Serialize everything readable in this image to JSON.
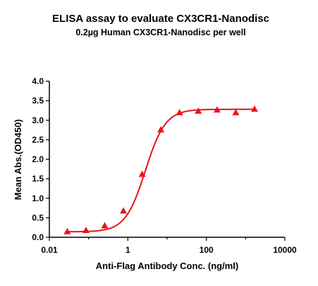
{
  "chart_data": {
    "type": "scatter",
    "title": "ELISA assay to evaluate CX3CR1-Nanodisc",
    "subtitle": "0.2µg Human CX3CR1-Nanodisc per well",
    "xlabel": "Anti-Flag Antibody Conc. (ng/ml)",
    "ylabel": "Mean Abs.(OD450)",
    "x_scale": "log",
    "xlim": [
      0.01,
      10000
    ],
    "ylim": [
      0.0,
      4.0
    ],
    "x_ticks": [
      0.01,
      1,
      100,
      10000
    ],
    "x_tick_labels": [
      "0.01",
      "1",
      "100",
      "10000"
    ],
    "y_ticks": [
      0.0,
      0.5,
      1.0,
      1.5,
      2.0,
      2.5,
      3.0,
      3.5,
      4.0
    ],
    "y_tick_labels": [
      "0.0",
      "0.5",
      "1.0",
      "1.5",
      "2.0",
      "2.5",
      "3.0",
      "3.5",
      "4.0"
    ],
    "grid": false,
    "legend": false,
    "marker": "triangle",
    "color": "#e8141c",
    "series": [
      {
        "x": [
          0.0286,
          0.0857,
          0.257,
          0.771,
          2.31,
          6.94,
          20.8,
          62.5,
          187.5,
          562.5,
          1687.5
        ],
        "y": [
          0.15,
          0.18,
          0.3,
          0.68,
          1.62,
          2.76,
          3.2,
          3.24,
          3.27,
          3.2,
          3.29
        ]
      }
    ],
    "fit_curve": {
      "bottom": 0.14,
      "top": 3.28,
      "ec50": 2.8,
      "hill": 1.7
    }
  }
}
